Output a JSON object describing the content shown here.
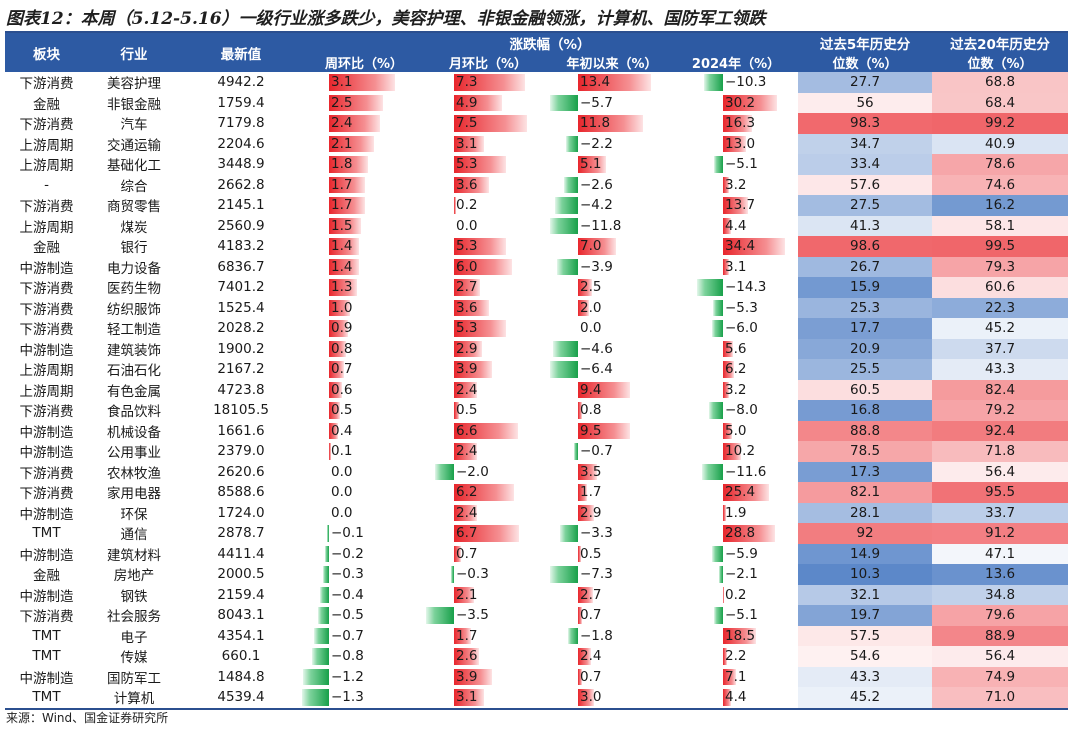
{
  "title": "图表12：本周（5.12-5.16）一级行业涨多跌少，美容护理、非银金融领涨，计算机、国防军工领跌",
  "source": "来源：Wind、国金证券研究所",
  "chart_data": {
    "type": "table",
    "headers": {
      "sector": "板块",
      "industry": "行业",
      "latest": "最新值",
      "change_group": "涨跌幅（%）",
      "wk": "周环比（%）",
      "mo": "月环比（%）",
      "ytd": "年初以来（%）",
      "y2024": "2024年（%）",
      "p5_line1": "过去5年历史分",
      "p5_line2": "位数（%）",
      "p20_line1": "过去20年历史分",
      "p20_line2": "位数（%）"
    },
    "colors": {
      "header_bg": "#2d5aa3",
      "pos_bar": "#e8262c",
      "neg_bar": "#18a04a",
      "high_pct": "#f06468",
      "mid_pct": "#ffffff",
      "low_pct": "#5b87c9"
    },
    "rows": [
      {
        "sector": "下游消费",
        "industry": "美容护理",
        "latest": "4942.2",
        "wk": 3.1,
        "mo": 7.3,
        "ytd": 13.4,
        "y2024": -10.3,
        "p5": "27.7",
        "p20": "68.8"
      },
      {
        "sector": "金融",
        "industry": "非银金融",
        "latest": "1759.4",
        "wk": 2.5,
        "mo": 4.9,
        "ytd": -5.7,
        "y2024": 30.2,
        "p5": "56",
        "p20": "68.4"
      },
      {
        "sector": "下游消费",
        "industry": "汽车",
        "latest": "7179.8",
        "wk": 2.4,
        "mo": 7.5,
        "ytd": 11.8,
        "y2024": 16.3,
        "p5": "98.3",
        "p20": "99.2"
      },
      {
        "sector": "上游周期",
        "industry": "交通运输",
        "latest": "2204.6",
        "wk": 2.1,
        "mo": 3.1,
        "ytd": -2.2,
        "y2024": 13.0,
        "p5": "34.7",
        "p20": "40.9"
      },
      {
        "sector": "上游周期",
        "industry": "基础化工",
        "latest": "3448.9",
        "wk": 1.8,
        "mo": 5.3,
        "ytd": 5.1,
        "y2024": -5.1,
        "p5": "33.4",
        "p20": "78.6"
      },
      {
        "sector": "-",
        "industry": "综合",
        "latest": "2662.8",
        "wk": 1.7,
        "mo": 3.6,
        "ytd": -2.6,
        "y2024": 3.2,
        "p5": "57.6",
        "p20": "74.6"
      },
      {
        "sector": "下游消费",
        "industry": "商贸零售",
        "latest": "2145.1",
        "wk": 1.7,
        "mo": 0.2,
        "ytd": -4.2,
        "y2024": 13.7,
        "p5": "27.5",
        "p20": "16.2"
      },
      {
        "sector": "上游周期",
        "industry": "煤炭",
        "latest": "2560.9",
        "wk": 1.5,
        "mo": 0.0,
        "ytd": -11.8,
        "y2024": 4.4,
        "p5": "41.3",
        "p20": "58.1"
      },
      {
        "sector": "金融",
        "industry": "银行",
        "latest": "4183.2",
        "wk": 1.4,
        "mo": 5.3,
        "ytd": 7.0,
        "y2024": 34.4,
        "p5": "98.6",
        "p20": "99.5"
      },
      {
        "sector": "中游制造",
        "industry": "电力设备",
        "latest": "6836.7",
        "wk": 1.4,
        "mo": 6.0,
        "ytd": -3.9,
        "y2024": 3.1,
        "p5": "26.7",
        "p20": "79.3"
      },
      {
        "sector": "下游消费",
        "industry": "医药生物",
        "latest": "7401.2",
        "wk": 1.3,
        "mo": 2.7,
        "ytd": 2.5,
        "y2024": -14.3,
        "p5": "15.9",
        "p20": "60.6"
      },
      {
        "sector": "下游消费",
        "industry": "纺织服饰",
        "latest": "1525.4",
        "wk": 1.0,
        "mo": 3.6,
        "ytd": 2.0,
        "y2024": -5.3,
        "p5": "25.3",
        "p20": "22.3"
      },
      {
        "sector": "下游消费",
        "industry": "轻工制造",
        "latest": "2028.2",
        "wk": 0.9,
        "mo": 5.3,
        "ytd": 0.0,
        "y2024": -6.0,
        "p5": "17.7",
        "p20": "45.2"
      },
      {
        "sector": "中游制造",
        "industry": "建筑装饰",
        "latest": "1900.2",
        "wk": 0.8,
        "mo": 2.9,
        "ytd": -4.6,
        "y2024": 5.6,
        "p5": "20.9",
        "p20": "37.7"
      },
      {
        "sector": "上游周期",
        "industry": "石油石化",
        "latest": "2167.2",
        "wk": 0.7,
        "mo": 3.9,
        "ytd": -6.4,
        "y2024": 6.2,
        "p5": "25.5",
        "p20": "43.3"
      },
      {
        "sector": "上游周期",
        "industry": "有色金属",
        "latest": "4723.8",
        "wk": 0.6,
        "mo": 2.4,
        "ytd": 9.4,
        "y2024": 3.2,
        "p5": "60.5",
        "p20": "82.4"
      },
      {
        "sector": "下游消费",
        "industry": "食品饮料",
        "latest": "18105.5",
        "wk": 0.5,
        "mo": 0.5,
        "ytd": 0.8,
        "y2024": -8.0,
        "p5": "16.8",
        "p20": "79.2"
      },
      {
        "sector": "中游制造",
        "industry": "机械设备",
        "latest": "1661.6",
        "wk": 0.4,
        "mo": 6.6,
        "ytd": 9.5,
        "y2024": 5.0,
        "p5": "88.8",
        "p20": "92.4"
      },
      {
        "sector": "中游制造",
        "industry": "公用事业",
        "latest": "2379.0",
        "wk": 0.1,
        "mo": 2.4,
        "ytd": -0.7,
        "y2024": 10.2,
        "p5": "78.5",
        "p20": "71.8"
      },
      {
        "sector": "下游消费",
        "industry": "农林牧渔",
        "latest": "2620.6",
        "wk": 0.0,
        "mo": -2.0,
        "ytd": 3.5,
        "y2024": -11.6,
        "p5": "17.3",
        "p20": "56.4"
      },
      {
        "sector": "下游消费",
        "industry": "家用电器",
        "latest": "8588.6",
        "wk": 0.0,
        "mo": 6.2,
        "ytd": 1.7,
        "y2024": 25.4,
        "p5": "82.1",
        "p20": "95.5"
      },
      {
        "sector": "中游制造",
        "industry": "环保",
        "latest": "1724.0",
        "wk": 0.0,
        "mo": 2.4,
        "ytd": 2.9,
        "y2024": 1.9,
        "p5": "28.1",
        "p20": "33.7"
      },
      {
        "sector": "TMT",
        "industry": "通信",
        "latest": "2878.7",
        "wk": -0.1,
        "mo": 6.7,
        "ytd": -3.3,
        "y2024": 28.8,
        "p5": "92",
        "p20": "91.2"
      },
      {
        "sector": "中游制造",
        "industry": "建筑材料",
        "latest": "4411.4",
        "wk": -0.2,
        "mo": 0.7,
        "ytd": 0.5,
        "y2024": -5.9,
        "p5": "14.9",
        "p20": "47.1"
      },
      {
        "sector": "金融",
        "industry": "房地产",
        "latest": "2000.5",
        "wk": -0.3,
        "mo": -0.3,
        "ytd": -7.3,
        "y2024": -2.1,
        "p5": "10.3",
        "p20": "13.6"
      },
      {
        "sector": "中游制造",
        "industry": "钢铁",
        "latest": "2159.4",
        "wk": -0.4,
        "mo": 2.1,
        "ytd": 2.7,
        "y2024": 0.2,
        "p5": "32.1",
        "p20": "34.8"
      },
      {
        "sector": "下游消费",
        "industry": "社会服务",
        "latest": "8043.1",
        "wk": -0.5,
        "mo": -3.5,
        "ytd": 0.7,
        "y2024": -5.1,
        "p5": "19.7",
        "p20": "79.6"
      },
      {
        "sector": "TMT",
        "industry": "电子",
        "latest": "4354.1",
        "wk": -0.7,
        "mo": 1.7,
        "ytd": -1.8,
        "y2024": 18.5,
        "p5": "57.5",
        "p20": "88.9"
      },
      {
        "sector": "TMT",
        "industry": "传媒",
        "latest": "660.1",
        "wk": -0.8,
        "mo": 2.6,
        "ytd": 2.4,
        "y2024": 2.2,
        "p5": "54.6",
        "p20": "56.4"
      },
      {
        "sector": "中游制造",
        "industry": "国防军工",
        "latest": "1484.8",
        "wk": -1.2,
        "mo": 3.9,
        "ytd": 0.7,
        "y2024": 7.1,
        "p5": "43.3",
        "p20": "74.9"
      },
      {
        "sector": "TMT",
        "industry": "计算机",
        "latest": "4539.4",
        "wk": -1.3,
        "mo": 3.1,
        "ytd": 3.0,
        "y2024": 4.4,
        "p5": "45.2",
        "p20": "71.0"
      }
    ]
  }
}
